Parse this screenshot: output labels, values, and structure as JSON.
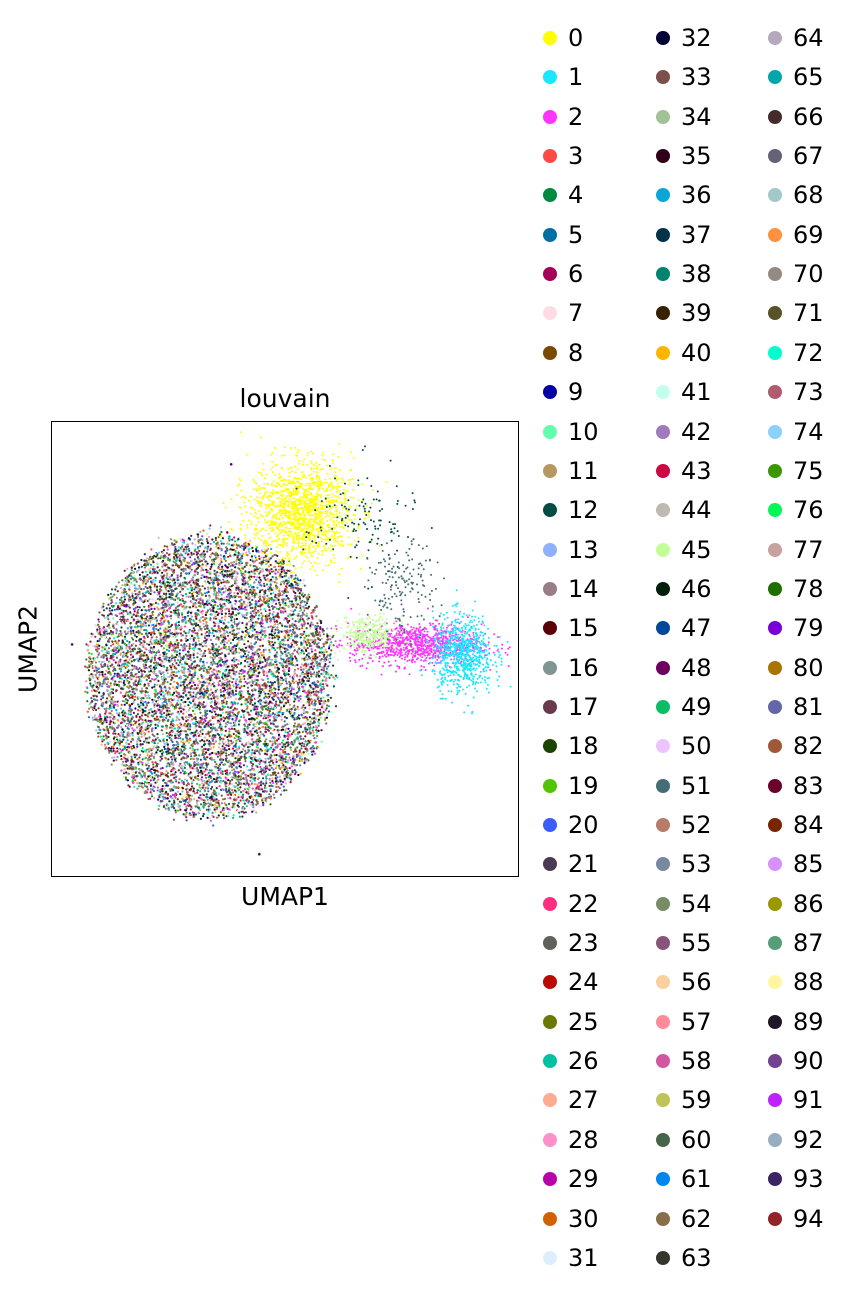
{
  "chart_data": {
    "type": "scatter",
    "title": "louvain",
    "xlabel": "UMAP1",
    "ylabel": "UMAP2",
    "grid": false,
    "legend_placement": "right",
    "legend_columns": 3,
    "xlim": [
      0,
      100
    ],
    "ylim": [
      0,
      100
    ],
    "categories": [
      "0",
      "1",
      "2",
      "3",
      "4",
      "5",
      "6",
      "7",
      "8",
      "9",
      "10",
      "11",
      "12",
      "13",
      "14",
      "15",
      "16",
      "17",
      "18",
      "19",
      "20",
      "21",
      "22",
      "23",
      "24",
      "25",
      "26",
      "27",
      "28",
      "29",
      "30",
      "31",
      "32",
      "33",
      "34",
      "35",
      "36",
      "37",
      "38",
      "39",
      "40",
      "41",
      "42",
      "43",
      "44",
      "45",
      "46",
      "47",
      "48",
      "49",
      "50",
      "51",
      "52",
      "53",
      "54",
      "55",
      "56",
      "57",
      "58",
      "59",
      "60",
      "61",
      "62",
      "63",
      "64",
      "65",
      "66",
      "67",
      "68",
      "69",
      "70",
      "71",
      "72",
      "73",
      "74",
      "75",
      "76",
      "77",
      "78",
      "79",
      "80",
      "81",
      "82",
      "83",
      "84",
      "85",
      "86",
      "87",
      "88",
      "89",
      "90",
      "91",
      "92",
      "93",
      "94"
    ],
    "colors": [
      "#ffff00",
      "#1ce6ff",
      "#ff34ff",
      "#ff4a46",
      "#008941",
      "#006fa6",
      "#a30059",
      "#ffdbe5",
      "#7a4900",
      "#0000a6",
      "#63ffac",
      "#b79762",
      "#004d43",
      "#8fb0ff",
      "#997d87",
      "#5a0007",
      "#809693",
      "#6a3a4c",
      "#1b4400",
      "#4fc601",
      "#3b5dff",
      "#4a3b53",
      "#ff2f80",
      "#61615a",
      "#ba0900",
      "#6b7900",
      "#00c2a0",
      "#ffaa92",
      "#ff90c9",
      "#b903aa",
      "#d16100",
      "#ddefff",
      "#000035",
      "#7b4f4b",
      "#a1c299",
      "#300018",
      "#0aa6d8",
      "#013349",
      "#00846f",
      "#372101",
      "#ffb500",
      "#c2ffed",
      "#a079bf",
      "#cc0744",
      "#c0b9b2",
      "#c2ff99",
      "#001e09",
      "#00489c",
      "#6f0062",
      "#0cbd66",
      "#eec3ff",
      "#456d75",
      "#b77b68",
      "#7a87a1",
      "#788d66",
      "#885578",
      "#fad09f",
      "#ff8a9a",
      "#d157a0",
      "#bec459",
      "#456648",
      "#0086ed",
      "#886f4c",
      "#34362d",
      "#b4a8bd",
      "#00a6aa",
      "#452c2c",
      "#636375",
      "#a3c8c9",
      "#ff913f",
      "#938a81",
      "#575329",
      "#00fecf",
      "#b05b6f",
      "#8cd0ff",
      "#3b9700",
      "#04f757",
      "#c8a1a1",
      "#1e6e00",
      "#7900d7",
      "#a77500",
      "#6367a9",
      "#a05837",
      "#6b002c",
      "#772600",
      "#d790ff",
      "#9b9700",
      "#549e79",
      "#fff69f",
      "#201625",
      "#72418f",
      "#bc23ff",
      "#99adc0",
      "#3a2465",
      "#922329"
    ],
    "clusters": [
      {
        "category": "0",
        "center": [
          53.5,
          80
        ],
        "spread": [
          5.5,
          5.5
        ],
        "count": 1400
      },
      {
        "category": "2",
        "center": [
          78,
          51
        ],
        "spread": [
          7,
          2.2
        ],
        "count": 900
      },
      {
        "category": "1",
        "center": [
          88,
          49
        ],
        "spread": [
          3.2,
          4.2
        ],
        "count": 700
      },
      {
        "category": "45",
        "center": [
          68,
          53
        ],
        "spread": [
          3,
          2
        ],
        "count": 300
      },
      {
        "category": "12",
        "center": [
          66,
          78
        ],
        "spread": [
          6,
          6
        ],
        "count": 120
      },
      {
        "category": "51",
        "center": [
          75,
          63
        ],
        "spread": [
          3.5,
          5
        ],
        "count": 160
      }
    ],
    "mixed_blob": {
      "center": [
        34,
        44
      ],
      "radius": [
        26,
        31
      ],
      "count": 9000
    },
    "outliers": [
      [
        4.5,
        51
      ],
      [
        38.5,
        90.5
      ],
      [
        44.5,
        5
      ],
      [
        57.5,
        38
      ]
    ]
  }
}
